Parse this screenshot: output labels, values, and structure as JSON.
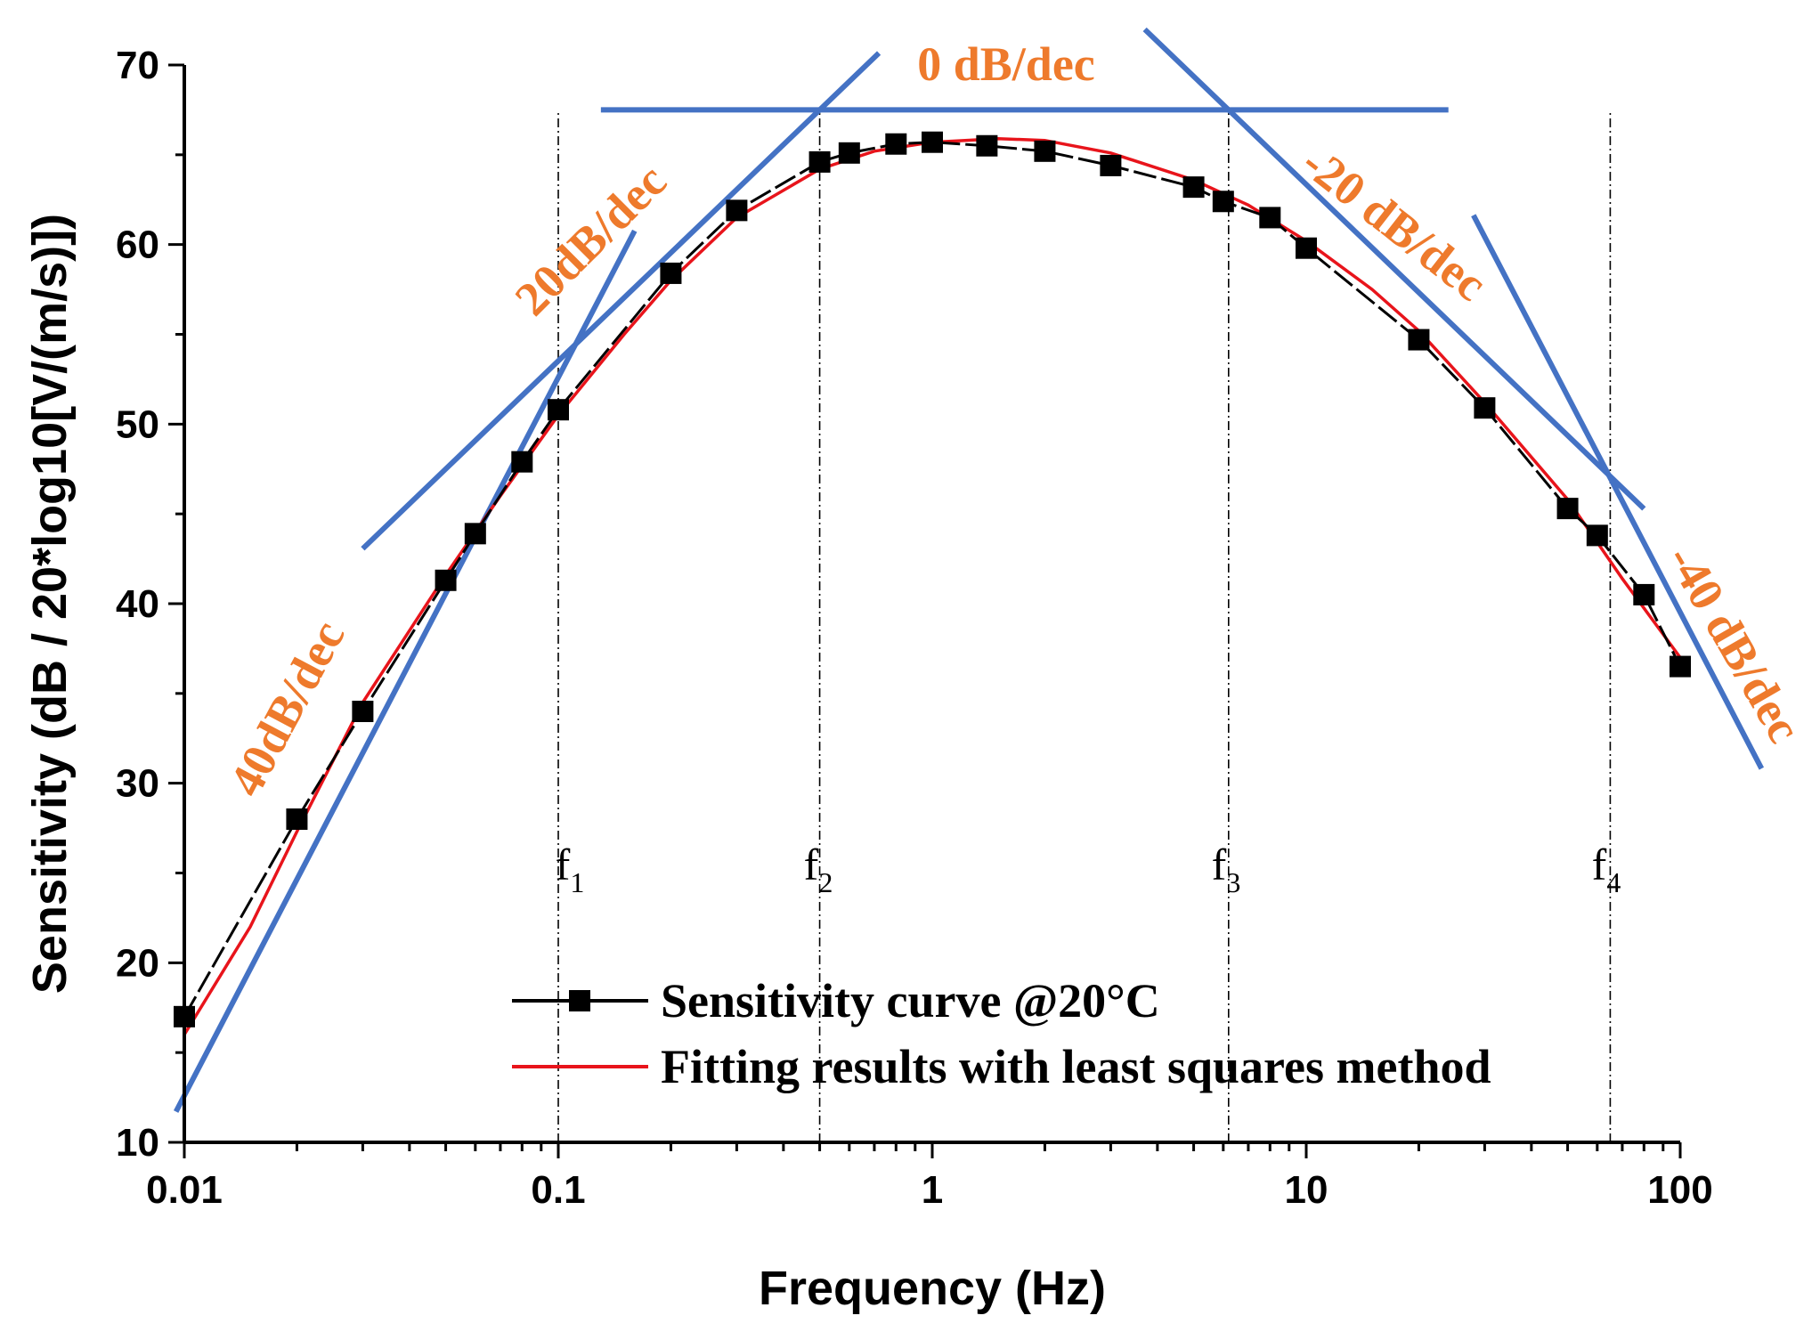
{
  "chart_data": {
    "type": "line",
    "xlabel": "Frequency (Hz)",
    "ylabel": "Sensitivity (dB / 20*log10[V/(m/s)])",
    "xscale": "log",
    "xlim": [
      0.01,
      100
    ],
    "ylim": [
      10,
      70
    ],
    "x_ticks": [
      {
        "value": 0.01,
        "label": "0.01"
      },
      {
        "value": 0.1,
        "label": "0.1"
      },
      {
        "value": 1,
        "label": "1"
      },
      {
        "value": 10,
        "label": "10"
      },
      {
        "value": 100,
        "label": "100"
      }
    ],
    "y_ticks": [
      {
        "value": 10,
        "label": "10"
      },
      {
        "value": 20,
        "label": "20"
      },
      {
        "value": 30,
        "label": "30"
      },
      {
        "value": 40,
        "label": "40"
      },
      {
        "value": 50,
        "label": "50"
      },
      {
        "value": 60,
        "label": "60"
      },
      {
        "value": 70,
        "label": "70"
      }
    ],
    "series": [
      {
        "name": "Sensitivity curve @20°C",
        "color": "#000000",
        "points": [
          [
            0.01,
            17.0
          ],
          [
            0.02,
            28.0
          ],
          [
            0.03,
            34.0
          ],
          [
            0.05,
            41.3
          ],
          [
            0.06,
            43.9
          ],
          [
            0.08,
            47.9
          ],
          [
            0.1,
            50.8
          ],
          [
            0.2,
            58.4
          ],
          [
            0.3,
            61.9
          ],
          [
            0.5,
            64.6
          ],
          [
            0.6,
            65.1
          ],
          [
            0.8,
            65.6
          ],
          [
            1.0,
            65.7
          ],
          [
            1.4,
            65.5
          ],
          [
            2.0,
            65.2
          ],
          [
            3.0,
            64.4
          ],
          [
            5.0,
            63.2
          ],
          [
            6.0,
            62.4
          ],
          [
            8.0,
            61.5
          ],
          [
            10.0,
            59.8
          ],
          [
            20.0,
            54.7
          ],
          [
            30.0,
            50.9
          ],
          [
            50.0,
            45.3
          ],
          [
            60.0,
            43.8
          ],
          [
            80.0,
            40.5
          ],
          [
            100.0,
            36.5
          ]
        ]
      },
      {
        "name": "Fitting results with least squares method",
        "color": "#e8141b",
        "points": [
          [
            0.01,
            16.0
          ],
          [
            0.015,
            22.0
          ],
          [
            0.02,
            27.3
          ],
          [
            0.03,
            34.5
          ],
          [
            0.05,
            41.6
          ],
          [
            0.07,
            46.0
          ],
          [
            0.1,
            50.5
          ],
          [
            0.15,
            55.0
          ],
          [
            0.2,
            58.0
          ],
          [
            0.3,
            61.5
          ],
          [
            0.5,
            64.2
          ],
          [
            0.7,
            65.2
          ],
          [
            1.0,
            65.7
          ],
          [
            1.5,
            65.9
          ],
          [
            2.0,
            65.8
          ],
          [
            3.0,
            65.1
          ],
          [
            5.0,
            63.6
          ],
          [
            7.0,
            62.2
          ],
          [
            10.0,
            60.2
          ],
          [
            15.0,
            57.5
          ],
          [
            20.0,
            55.2
          ],
          [
            30.0,
            51.2
          ],
          [
            50.0,
            45.8
          ],
          [
            70.0,
            41.4
          ],
          [
            100.0,
            37.0
          ]
        ]
      }
    ],
    "asymptotes": [
      {
        "label": "40dB/dec",
        "slope": 40,
        "x_range": [
          0.0095,
          0.16
        ],
        "passes_through": [
          0.1,
          52.6
        ]
      },
      {
        "label": "20dB/dec",
        "slope": 20,
        "x_range": [
          0.03,
          0.72
        ],
        "passes_through": [
          0.5,
          67.5
        ]
      },
      {
        "label": "0 dB/dec",
        "slope": 0,
        "x_range": [
          0.13,
          24
        ],
        "passes_through": [
          1,
          67.5
        ]
      },
      {
        "label": "-20 dB/dec",
        "slope": -20,
        "x_range": [
          3.7,
          80
        ],
        "passes_through": [
          6.2,
          67.5
        ]
      },
      {
        "label": "-40 dB/dec",
        "slope": -40,
        "x_range": [
          28,
          165
        ],
        "passes_through": [
          65,
          47.0
        ]
      }
    ],
    "corner_frequencies": [
      {
        "name": "f",
        "sub": "1",
        "value": 0.1
      },
      {
        "name": "f",
        "sub": "2",
        "value": 0.5
      },
      {
        "name": "f",
        "sub": "3",
        "value": 6.2
      },
      {
        "name": "f",
        "sub": "4",
        "value": 65
      }
    ],
    "legend": {
      "position": "bottom-center",
      "entries": [
        "Sensitivity curve @20°C",
        "Fitting results with least squares method"
      ]
    }
  }
}
